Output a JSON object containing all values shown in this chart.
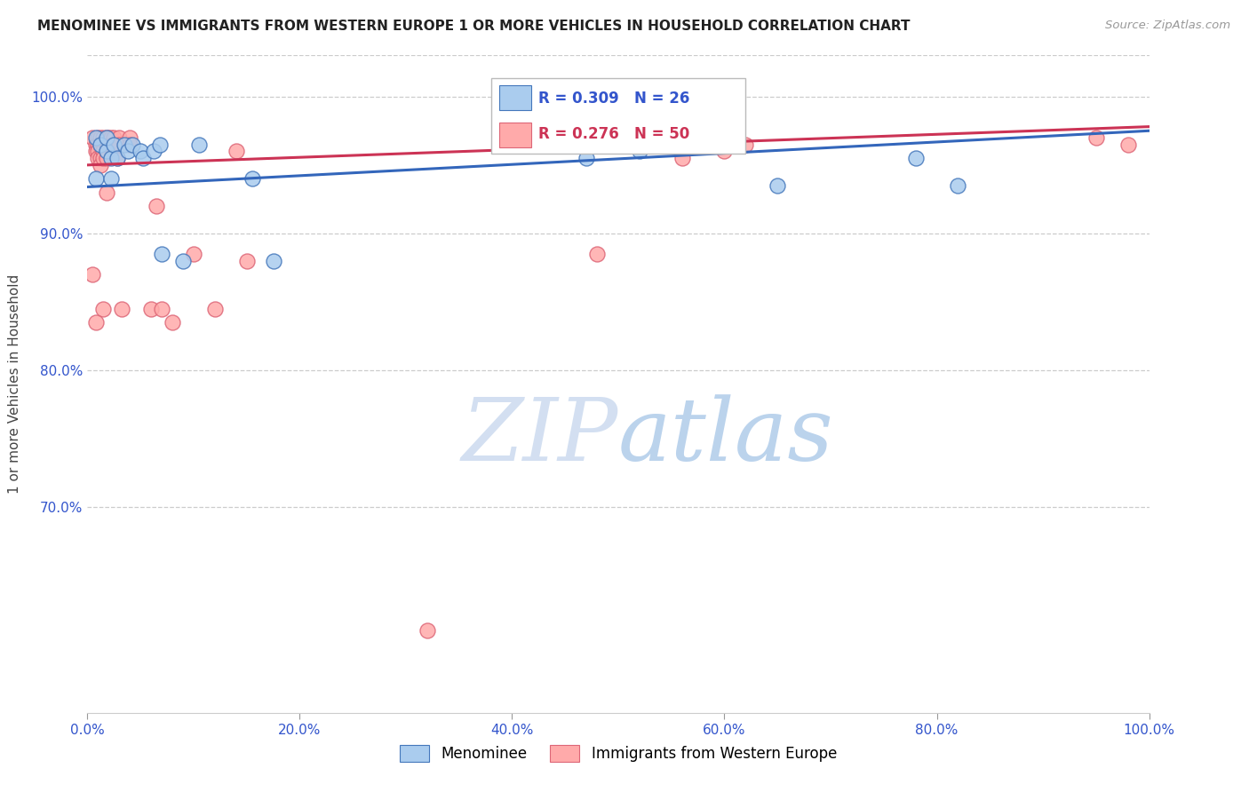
{
  "title": "MENOMINEE VS IMMIGRANTS FROM WESTERN EUROPE 1 OR MORE VEHICLES IN HOUSEHOLD CORRELATION CHART",
  "source_text": "Source: ZipAtlas.com",
  "ylabel": "1 or more Vehicles in Household",
  "xlim": [
    0.0,
    1.0
  ],
  "ylim": [
    0.55,
    1.03
  ],
  "xtick_positions": [
    0.0,
    0.2,
    0.4,
    0.6,
    0.8,
    1.0
  ],
  "ytick_positions": [
    1.0,
    0.9,
    0.8,
    0.7
  ],
  "ytick_labels": [
    "100.0%",
    "90.0%",
    "80.0%",
    "70.0%"
  ],
  "blue_color": "#aaccee",
  "pink_color": "#ffaaaa",
  "blue_edge_color": "#4477bb",
  "pink_edge_color": "#dd6677",
  "blue_line_color": "#3366bb",
  "pink_line_color": "#cc3355",
  "legend_blue_R": "0.309",
  "legend_blue_N": "26",
  "legend_pink_R": "0.276",
  "legend_pink_N": "50",
  "blue_series_label": "Menominee",
  "pink_series_label": "Immigrants from Western Europe",
  "watermark_zip": "ZIP",
  "watermark_atlas": "atlas",
  "blue_points": [
    [
      0.008,
      0.97
    ],
    [
      0.012,
      0.965
    ],
    [
      0.018,
      0.96
    ],
    [
      0.018,
      0.97
    ],
    [
      0.022,
      0.955
    ],
    [
      0.025,
      0.965
    ],
    [
      0.028,
      0.955
    ],
    [
      0.035,
      0.965
    ],
    [
      0.038,
      0.96
    ],
    [
      0.042,
      0.965
    ],
    [
      0.05,
      0.96
    ],
    [
      0.052,
      0.955
    ],
    [
      0.062,
      0.96
    ],
    [
      0.068,
      0.965
    ],
    [
      0.07,
      0.885
    ],
    [
      0.09,
      0.88
    ],
    [
      0.105,
      0.965
    ],
    [
      0.155,
      0.94
    ],
    [
      0.175,
      0.88
    ],
    [
      0.008,
      0.94
    ],
    [
      0.022,
      0.94
    ],
    [
      0.47,
      0.955
    ],
    [
      0.52,
      0.96
    ],
    [
      0.65,
      0.935
    ],
    [
      0.78,
      0.955
    ],
    [
      0.82,
      0.935
    ]
  ],
  "pink_points": [
    [
      0.005,
      0.97
    ],
    [
      0.008,
      0.965
    ],
    [
      0.008,
      0.96
    ],
    [
      0.01,
      0.97
    ],
    [
      0.01,
      0.965
    ],
    [
      0.01,
      0.96
    ],
    [
      0.01,
      0.955
    ],
    [
      0.012,
      0.97
    ],
    [
      0.012,
      0.965
    ],
    [
      0.012,
      0.955
    ],
    [
      0.012,
      0.95
    ],
    [
      0.015,
      0.97
    ],
    [
      0.015,
      0.965
    ],
    [
      0.015,
      0.96
    ],
    [
      0.015,
      0.955
    ],
    [
      0.015,
      0.845
    ],
    [
      0.018,
      0.97
    ],
    [
      0.018,
      0.965
    ],
    [
      0.018,
      0.96
    ],
    [
      0.018,
      0.955
    ],
    [
      0.02,
      0.97
    ],
    [
      0.02,
      0.965
    ],
    [
      0.022,
      0.97
    ],
    [
      0.022,
      0.965
    ],
    [
      0.025,
      0.97
    ],
    [
      0.025,
      0.965
    ],
    [
      0.028,
      0.955
    ],
    [
      0.03,
      0.97
    ],
    [
      0.03,
      0.965
    ],
    [
      0.032,
      0.845
    ],
    [
      0.04,
      0.97
    ],
    [
      0.04,
      0.965
    ],
    [
      0.06,
      0.845
    ],
    [
      0.065,
      0.92
    ],
    [
      0.07,
      0.845
    ],
    [
      0.08,
      0.835
    ],
    [
      0.1,
      0.885
    ],
    [
      0.12,
      0.845
    ],
    [
      0.14,
      0.96
    ],
    [
      0.15,
      0.88
    ],
    [
      0.005,
      0.87
    ],
    [
      0.008,
      0.835
    ],
    [
      0.018,
      0.93
    ],
    [
      0.32,
      0.61
    ],
    [
      0.48,
      0.885
    ],
    [
      0.56,
      0.955
    ],
    [
      0.6,
      0.96
    ],
    [
      0.62,
      0.965
    ],
    [
      0.95,
      0.97
    ],
    [
      0.98,
      0.965
    ]
  ],
  "blue_trend_x": [
    0.0,
    1.0
  ],
  "blue_trend_y": [
    0.934,
    0.975
  ],
  "pink_trend_x": [
    0.0,
    1.0
  ],
  "pink_trend_y": [
    0.95,
    0.978
  ]
}
